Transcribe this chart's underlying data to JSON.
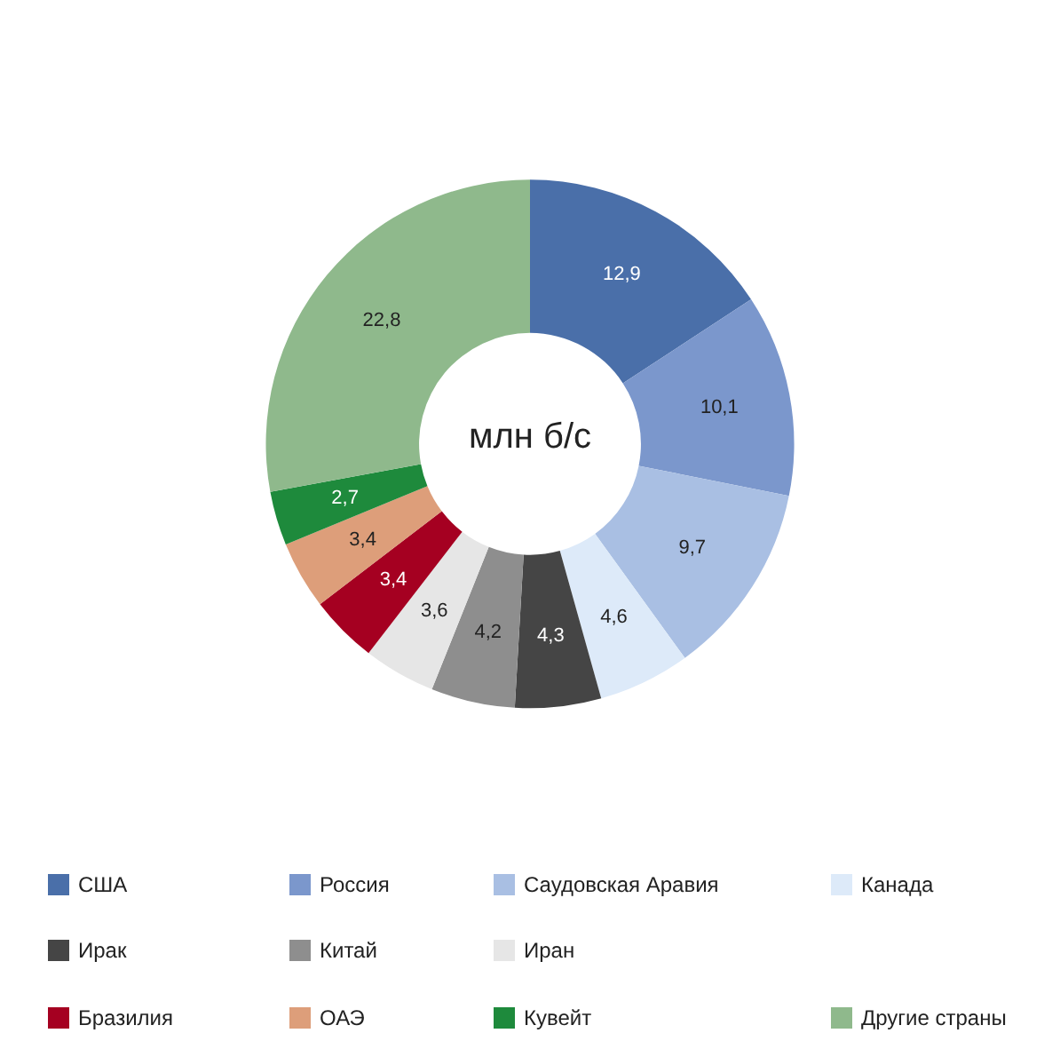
{
  "chart_data": {
    "type": "donut",
    "categories": [
      "США",
      "Россия",
      "Саудовская Аравия",
      "Канада",
      "Ирак",
      "Китай",
      "Иран",
      "Бразилия",
      "ОАЭ",
      "Кувейт",
      "Другие страны"
    ],
    "values": [
      12.9,
      10.1,
      9.7,
      4.6,
      4.3,
      4.2,
      3.6,
      3.4,
      3.4,
      2.7,
      22.8
    ],
    "value_labels": [
      "12,9",
      "10,1",
      "9,7",
      "4,6",
      "4,3",
      "4,2",
      "3,6",
      "3,4",
      "3,4",
      "2,7",
      "22,8"
    ],
    "colors": [
      "#4a6fa9",
      "#7b97cc",
      "#a9bfe3",
      "#ddeaf9",
      "#454545",
      "#8e8e8e",
      "#e6e6e6",
      "#a50021",
      "#dd9e7a",
      "#1e8a3c",
      "#8fb98c"
    ],
    "annotations": [
      "млн б/с"
    ],
    "legend": "bottom"
  }
}
